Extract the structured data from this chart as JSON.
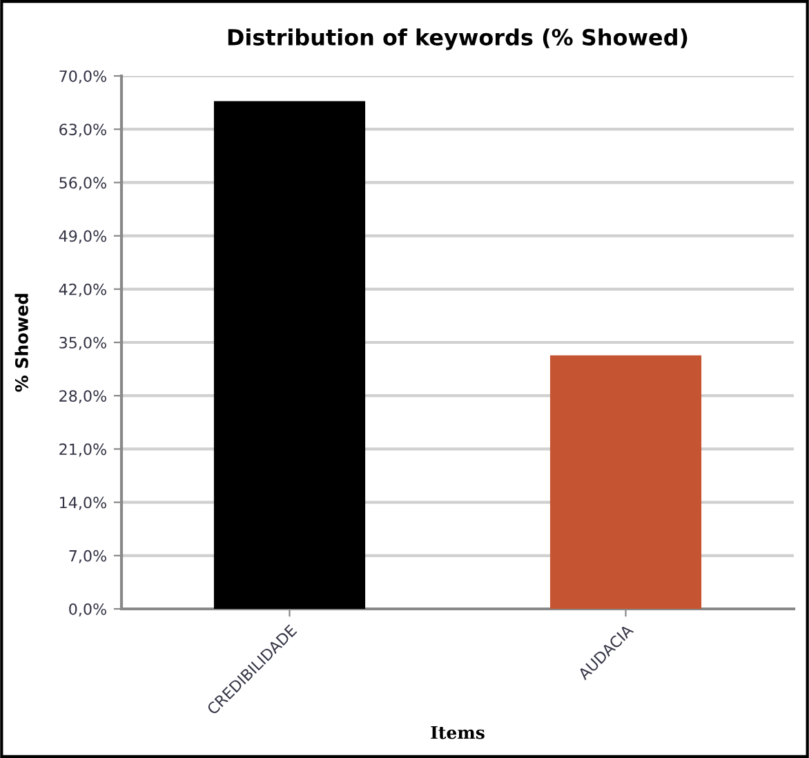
{
  "chart_data": {
    "type": "bar",
    "title": "Distribution of keywords (% Showed)",
    "xlabel": "Items",
    "ylabel": "% Showed",
    "categories": [
      "CREDIBILIDADE",
      "AUDACIA"
    ],
    "values": [
      66.7,
      33.3
    ],
    "colors": [
      "#000000",
      "#c55532"
    ],
    "ylim": [
      0,
      70
    ],
    "yticks": [
      {
        "value": 0,
        "label": "0,0%"
      },
      {
        "value": 7,
        "label": "7,0%"
      },
      {
        "value": 14,
        "label": "14,0%"
      },
      {
        "value": 21,
        "label": "21,0%"
      },
      {
        "value": 28,
        "label": "28,0%"
      },
      {
        "value": 35,
        "label": "35,0%"
      },
      {
        "value": 42,
        "label": "42,0%"
      },
      {
        "value": 49,
        "label": "49,0%"
      },
      {
        "value": 56,
        "label": "56,0%"
      },
      {
        "value": 63,
        "label": "63,0%"
      },
      {
        "value": 70,
        "label": "70,0%"
      }
    ],
    "grid": "y"
  }
}
